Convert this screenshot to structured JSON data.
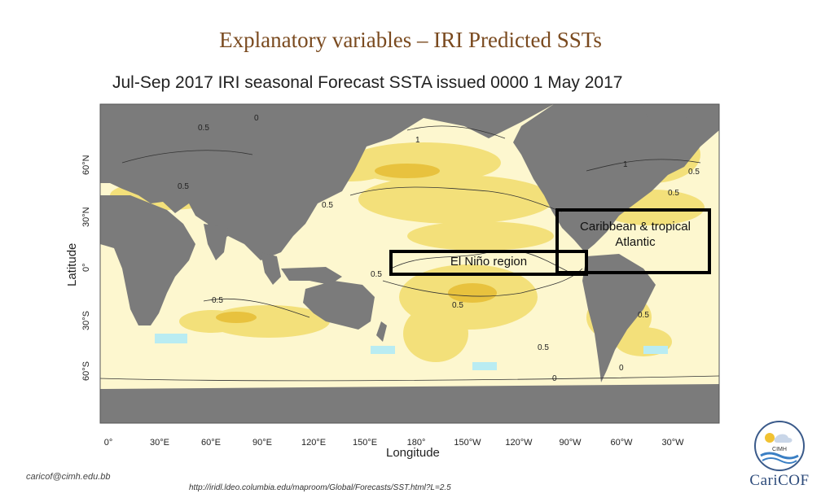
{
  "slide": {
    "title": "Explanatory variables – IRI Predicted SSTs",
    "email": "caricof@cimh.edu.bb",
    "source_url": "http://iridl.ldeo.columbia.edu/maproom/Global/Forecasts/SST.html?L=2.5"
  },
  "map": {
    "title": "Jul-Sep 2017 IRI seasonal Forecast SSTA issued 0000 1 May 2017",
    "xlabel": "Longitude",
    "ylabel": "Latitude",
    "x_ticks": [
      "0°",
      "30°E",
      "60°E",
      "90°E",
      "120°E",
      "150°E",
      "180°",
      "150°W",
      "120°W",
      "90°W",
      "60°W",
      "30°W"
    ],
    "y_ticks": [
      "60°N",
      "30°N",
      "0°",
      "30°S",
      "60°S"
    ],
    "contour_labels": [
      "0",
      "0.5",
      "0.5",
      "1",
      "0.5",
      "0.5",
      "1",
      "0.5",
      "0.5",
      "0.5",
      "0.5",
      "0.5",
      "0",
      "0.5",
      "0"
    ],
    "colors": {
      "land": "#7b7b7b",
      "anomaly_light": "#fdf7cf",
      "anomaly_yellow": "#f3e07a",
      "anomaly_orange": "#e8c23e",
      "anomaly_negative": "#b9ecf2",
      "box": "#000000"
    }
  },
  "regions": [
    {
      "label": "El Niño region"
    },
    {
      "label": "Caribbean & tropical Atlantic"
    }
  ],
  "logo": {
    "name": "CariCOF",
    "org": "CIMH"
  }
}
